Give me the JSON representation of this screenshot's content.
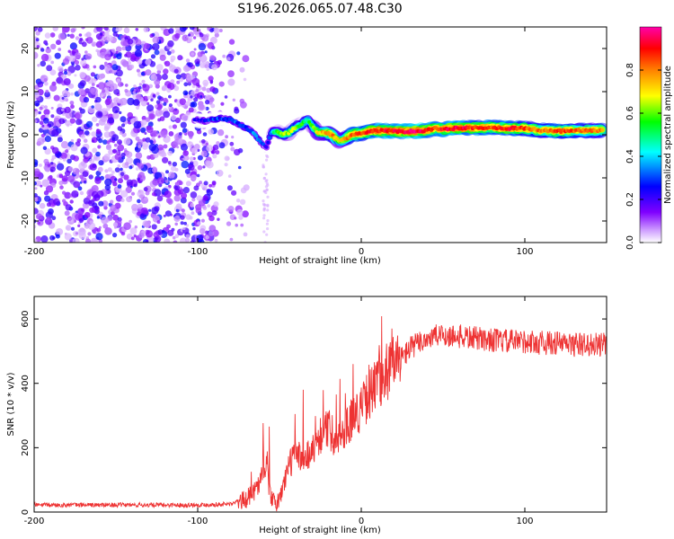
{
  "chart_data": [
    {
      "type": "heatmap",
      "title": "S196.2026.065.07.48.C30",
      "xlabel": "Height of straight line (km)",
      "ylabel": "Frequency (Hz)",
      "xlim": [
        -200,
        150
      ],
      "ylim": [
        -25,
        25
      ],
      "xticks": [
        -200,
        -100,
        0,
        100
      ],
      "yticks": [
        -20,
        -10,
        0,
        10,
        20
      ],
      "colorbar": {
        "label": "Normalized spectral amplitude",
        "range": [
          0,
          1
        ],
        "ticks": [
          "0.0",
          "0.2",
          "0.4",
          "0.6",
          "0.8"
        ],
        "colors": [
          "#ffffff",
          "#cc99ff",
          "#8000ff",
          "#0000ff",
          "#00ffff",
          "#00ff00",
          "#ffff00",
          "#ff8000",
          "#ff0000",
          "#ff00aa"
        ]
      },
      "ridge": {
        "x": [
          -102,
          -95,
          -88,
          -80,
          -75,
          -70,
          -66,
          -62,
          -58,
          -55,
          -52,
          -48,
          -44,
          -40,
          -36,
          -33,
          -30,
          -26,
          -22,
          -18,
          -14,
          -10,
          -6,
          0,
          5,
          10,
          20,
          30,
          40,
          45,
          50,
          60,
          70,
          80,
          90,
          100,
          110,
          120,
          130,
          140,
          148
        ],
        "freq": [
          3.5,
          3.2,
          3.8,
          3.5,
          2.5,
          1.5,
          0.5,
          -1.5,
          -3.0,
          0.5,
          0.8,
          0,
          0.5,
          1.8,
          2.5,
          3.5,
          2.0,
          0.3,
          0.5,
          0,
          -1.5,
          -1.0,
          0,
          0.3,
          0.8,
          1.0,
          0.8,
          0.8,
          1.0,
          1.5,
          1.3,
          1.6,
          1.6,
          1.7,
          1.5,
          1.5,
          1.0,
          0.8,
          1.0,
          1.0,
          1.0
        ],
        "amplitude": [
          0.2,
          0.25,
          0.3,
          0.28,
          0.3,
          0.3,
          0.32,
          0.28,
          0.25,
          0.4,
          0.55,
          0.6,
          0.65,
          0.6,
          0.55,
          0.5,
          0.6,
          0.7,
          0.75,
          0.8,
          0.7,
          0.75,
          0.85,
          0.85,
          0.88,
          0.9,
          0.92,
          0.95,
          0.92,
          0.85,
          0.9,
          0.92,
          0.88,
          0.85,
          0.9,
          0.85,
          0.8,
          0.85,
          0.82,
          0.8,
          0.8
        ],
        "description": "noise speckle for x < -70 km"
      }
    },
    {
      "type": "line",
      "xlabel": "Height of straight line (km)",
      "ylabel": "SNR (10 * v/v)",
      "xlim": [
        -200,
        150
      ],
      "ylim": [
        0,
        670
      ],
      "xticks": [
        -200,
        -100,
        0,
        100
      ],
      "yticks": [
        0,
        200,
        400,
        600
      ],
      "series": [
        {
          "name": "SNR",
          "color": "#ee3333",
          "x": [
            -200,
            -150,
            -100,
            -80,
            -70,
            -62,
            -59,
            -55,
            -52,
            -48,
            -45,
            -40,
            -35,
            -30,
            -25,
            -20,
            -15,
            -10,
            -5,
            0,
            5,
            10,
            15,
            20,
            25,
            30,
            40,
            50,
            60,
            70,
            80,
            90,
            100,
            110,
            120,
            130,
            140,
            150
          ],
          "y": [
            22,
            22,
            22,
            25,
            40,
            90,
            160,
            45,
            20,
            70,
            140,
            180,
            170,
            190,
            240,
            260,
            220,
            260,
            300,
            320,
            370,
            400,
            430,
            460,
            480,
            510,
            540,
            550,
            545,
            540,
            535,
            530,
            530,
            525,
            525,
            520,
            520,
            520
          ]
        }
      ]
    }
  ]
}
